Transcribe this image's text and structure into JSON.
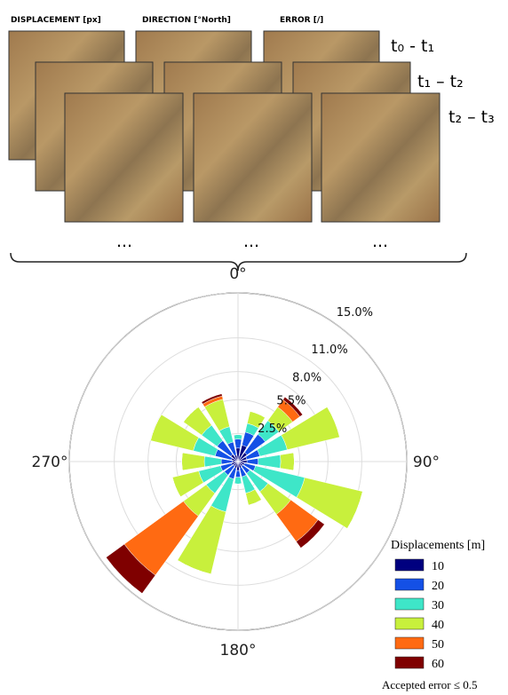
{
  "panels": {
    "columns": [
      "DISPLACEMENT [px]",
      "DIRECTION [°North]",
      "ERROR [/]"
    ],
    "time_steps": [
      "t₀ - t₁",
      "t₁ – t₂",
      "t₂ – t₃"
    ],
    "ellipses": [
      "...",
      "...",
      "..."
    ]
  },
  "chart_data": {
    "type": "windrose",
    "angles": [
      0,
      22.5,
      45,
      67.5,
      90,
      112.5,
      135,
      157.5,
      180,
      202.5,
      225,
      247.5,
      270,
      292.5,
      315,
      337.5
    ],
    "angle_ticks": [
      {
        "value": 0,
        "label": "0°"
      },
      {
        "value": 90,
        "label": "90°"
      },
      {
        "value": 180,
        "label": "180°"
      },
      {
        "value": 270,
        "label": "270°"
      }
    ],
    "ylim": [
      0,
      15
    ],
    "yticks": [
      {
        "value": 2.5,
        "label": "2.5%"
      },
      {
        "value": 5.5,
        "label": "5.5%"
      },
      {
        "value": 8,
        "label": "8.0%"
      },
      {
        "value": 11,
        "label": "11.0%"
      },
      {
        "value": 15,
        "label": "15.0%"
      }
    ],
    "legend_title": "Displacements [m]",
    "legend": "lower right",
    "footnote": "Accepted error ≤ 0.5",
    "series": [
      {
        "name": "10",
        "color": "#00007f",
        "values": [
          1.2,
          1.5,
          1.0,
          0.8,
          0.8,
          0.6,
          0.5,
          0.6,
          0.8,
          0.6,
          0.5,
          0.6,
          0.5,
          0.6,
          0.8,
          0.6
        ]
      },
      {
        "name": "20",
        "color": "#1450e6",
        "values": [
          0.8,
          1.2,
          2.0,
          1.2,
          1.0,
          1.0,
          0.8,
          0.8,
          0.6,
          1.0,
          1.0,
          1.0,
          1.0,
          1.5,
          1.5,
          1.2
        ]
      },
      {
        "name": "30",
        "color": "#3ee6c8",
        "values": [
          0.4,
          0.8,
          1.5,
          2.5,
          2.0,
          4.5,
          2.0,
          1.5,
          0.6,
          3.0,
          2.0,
          2.0,
          1.5,
          2.0,
          1.7,
          1.4
        ]
      },
      {
        "name": "40",
        "color": "#c8f03c",
        "values": [
          0,
          1.1,
          1.5,
          4.8,
          1.2,
          5.3,
          2.5,
          1.1,
          0,
          5.7,
          2.5,
          2.4,
          2.0,
          3.9,
          2.0,
          2.5
        ]
      },
      {
        "name": "50",
        "color": "#ff6a12",
        "values": [
          0,
          0,
          0.8,
          0,
          0,
          0,
          3.0,
          0,
          0,
          0,
          6.5,
          0,
          0,
          0,
          0,
          0.3
        ]
      },
      {
        "name": "60",
        "color": "#7f0000",
        "values": [
          0,
          0,
          0.3,
          0,
          0,
          0,
          0.7,
          0,
          0,
          0,
          2.0,
          0,
          0,
          0,
          0,
          0.2
        ]
      }
    ]
  }
}
